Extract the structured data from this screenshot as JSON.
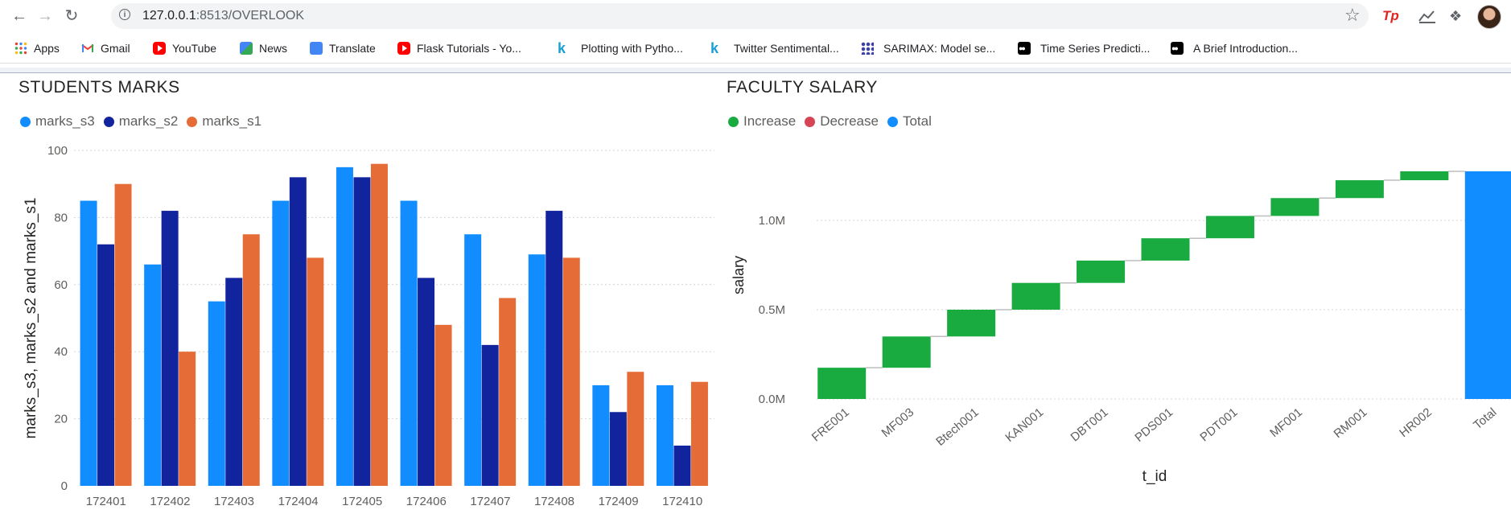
{
  "browser": {
    "url_host": "127.0.0.1",
    "url_rest": ":8513/OVERLOOK",
    "bookmarks": [
      {
        "label": "Apps",
        "icon": "apps-grid-icon"
      },
      {
        "label": "Gmail",
        "icon": "gmail-icon"
      },
      {
        "label": "YouTube",
        "icon": "youtube-icon"
      },
      {
        "label": "News",
        "icon": "google-news-icon"
      },
      {
        "label": "Translate",
        "icon": "google-translate-icon"
      },
      {
        "label": "Flask Tutorials - Yo...",
        "icon": "youtube-icon"
      },
      {
        "label": "Plotting with Pytho...",
        "icon": "kaggle-k-icon"
      },
      {
        "label": "Twitter Sentimental...",
        "icon": "kaggle-k-icon"
      },
      {
        "label": "SARIMAX: Model se...",
        "icon": "statsmodels-icon"
      },
      {
        "label": "Time Series Predicti...",
        "icon": "medium-icon"
      },
      {
        "label": "A Brief Introduction...",
        "icon": "medium-icon"
      }
    ],
    "extensions": {
      "tp_label": "Tp"
    }
  },
  "students_chart": {
    "title": "STUDENTS MARKS",
    "chart_data": {
      "type": "bar",
      "title": "STUDENTS MARKS",
      "xlabel": "",
      "ylabel": "marks_s3, marks_s2 and marks_s1",
      "ylim": [
        0,
        100
      ],
      "yticks": [
        0,
        20,
        40,
        60,
        80,
        100
      ],
      "grid": true,
      "legend_placement": "top-left",
      "categories": [
        "172401",
        "172402",
        "172403",
        "172404",
        "172405",
        "172406",
        "172407",
        "172408",
        "172409",
        "172410"
      ],
      "series": [
        {
          "name": "marks_s3",
          "color": "#118dff",
          "values": [
            85,
            66,
            55,
            85,
            95,
            85,
            75,
            69,
            30,
            30
          ]
        },
        {
          "name": "marks_s2",
          "color": "#12239e",
          "values": [
            72,
            82,
            62,
            92,
            92,
            62,
            42,
            82,
            22,
            12
          ]
        },
        {
          "name": "marks_s1",
          "color": "#e66c37",
          "values": [
            90,
            40,
            75,
            68,
            96,
            48,
            56,
            68,
            34,
            31
          ]
        }
      ]
    }
  },
  "salary_chart": {
    "title": "FACULTY SALARY",
    "legend": [
      {
        "name": "Increase",
        "color": "#1aab40"
      },
      {
        "name": "Decrease",
        "color": "#d64554"
      },
      {
        "name": "Total",
        "color": "#118dff"
      }
    ],
    "chart_data": {
      "type": "waterfall",
      "title": "FACULTY SALARY",
      "xlabel": "t_id",
      "ylabel": "salary",
      "ylim": [
        0,
        1400000
      ],
      "ytick_values": [
        0,
        500000,
        1000000
      ],
      "ytick_labels": [
        "0.0M",
        "0.5M",
        "1.0M"
      ],
      "grid": true,
      "legend_placement": "top-left",
      "categories": [
        "FRE001",
        "MF003",
        "Btech001",
        "KAN001",
        "DBT001",
        "PDS001",
        "PDT001",
        "MF001",
        "RM001",
        "HR002",
        "Total"
      ],
      "increments": [
        175000,
        175000,
        150000,
        150000,
        125000,
        125000,
        125000,
        100000,
        100000,
        50000
      ],
      "total": 1275000
    }
  }
}
